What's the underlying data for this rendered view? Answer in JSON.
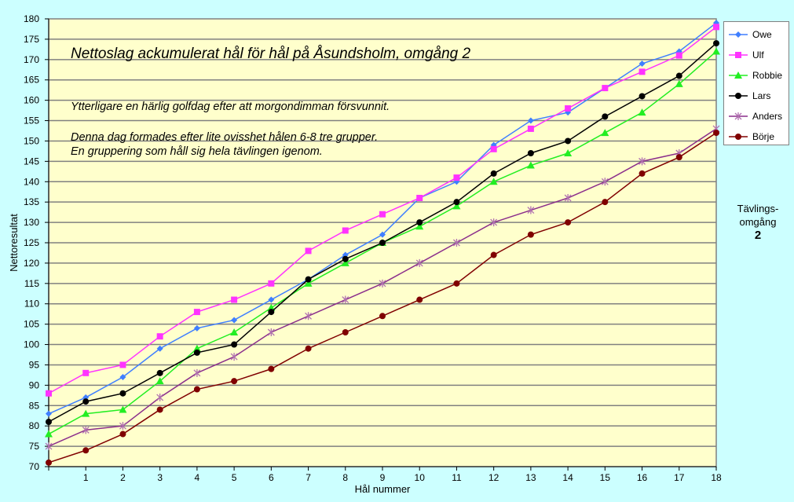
{
  "chart_data": {
    "type": "line",
    "title": "Nettoslag ackumulerat hål för hål på Åsundsholm, omgång 2",
    "annotations": [
      "Ytterligare en härlig golfdag efter att morgondimman försvunnit.",
      "Denna dag formades efter lite ovisshet hålen 6-8 tre grupper.",
      "En gruppering som håll sig hela tävlingen igenom."
    ],
    "xlabel": "Hål nummer",
    "ylabel": "Nettoresultat",
    "x": [
      0,
      1,
      2,
      3,
      4,
      5,
      6,
      7,
      8,
      9,
      10,
      11,
      12,
      13,
      14,
      15,
      16,
      17,
      18
    ],
    "x_tick_labels": [
      "1",
      "2",
      "3",
      "4",
      "5",
      "6",
      "7",
      "8",
      "9",
      "10",
      "11",
      "12",
      "13",
      "14",
      "15",
      "16",
      "17",
      "18"
    ],
    "ylim": [
      70,
      180
    ],
    "y_ticks": [
      70,
      75,
      80,
      85,
      90,
      95,
      100,
      105,
      110,
      115,
      120,
      125,
      130,
      135,
      140,
      145,
      150,
      155,
      160,
      165,
      170,
      175,
      180
    ],
    "grid": true,
    "legend_position": "right",
    "series": [
      {
        "name": "Owe",
        "color": "#3f7fff",
        "marker": "diamond",
        "values": [
          83,
          87,
          92,
          99,
          104,
          106,
          111,
          116,
          122,
          127,
          136,
          140,
          149,
          155,
          157,
          163,
          169,
          172,
          179
        ]
      },
      {
        "name": "Ulf",
        "color": "#ff33ff",
        "marker": "square",
        "values": [
          88,
          93,
          95,
          102,
          108,
          111,
          115,
          123,
          128,
          132,
          136,
          141,
          148,
          153,
          158,
          163,
          167,
          171,
          178
        ]
      },
      {
        "name": "Robbie",
        "color": "#22ee22",
        "marker": "triangle",
        "values": [
          78,
          83,
          84,
          91,
          99,
          103,
          109,
          115,
          120,
          125,
          129,
          134,
          140,
          144,
          147,
          152,
          157,
          164,
          172
        ]
      },
      {
        "name": "Lars",
        "color": "#000000",
        "marker": "circle",
        "values": [
          81,
          86,
          88,
          93,
          98,
          100,
          108,
          116,
          121,
          125,
          130,
          135,
          142,
          147,
          150,
          156,
          161,
          166,
          174
        ]
      },
      {
        "name": "Anders",
        "color": "#8b2e8b",
        "marker": "star",
        "values": [
          75,
          79,
          80,
          87,
          93,
          97,
          103,
          107,
          111,
          115,
          120,
          125,
          130,
          133,
          136,
          140,
          145,
          147,
          153
        ]
      },
      {
        "name": "Börje",
        "color": "#800000",
        "marker": "circle",
        "values": [
          71,
          74,
          78,
          84,
          89,
          91,
          94,
          99,
          103,
          107,
          111,
          115,
          122,
          127,
          130,
          135,
          142,
          146,
          152
        ]
      }
    ]
  },
  "side_label": {
    "line1": "Tävlings-",
    "line2": "omgång",
    "number": "2"
  },
  "colors": {
    "background": "#ccffff",
    "plot_area": "#ffffcc",
    "grid": "#808080"
  }
}
